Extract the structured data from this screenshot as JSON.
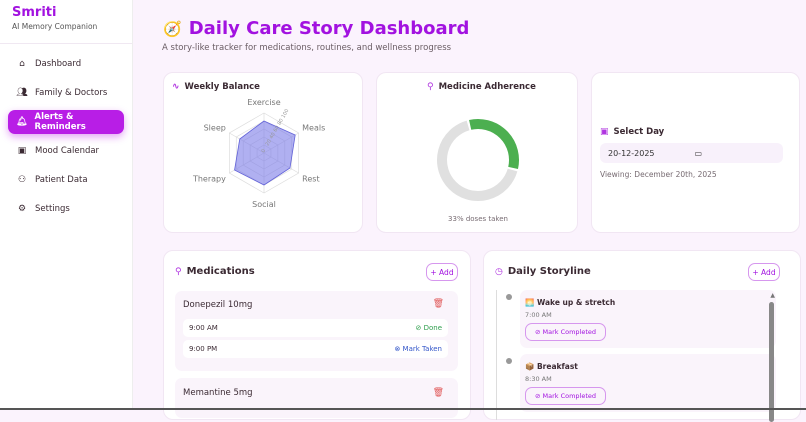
{
  "sidebar": {
    "brand": "Smriti",
    "tagline": "AI Memory Companion",
    "items": [
      {
        "label": "Dashboard",
        "icon": "home-icon"
      },
      {
        "label": "Family & Doctors",
        "icon": "users-icon"
      },
      {
        "label": "Alerts & Reminders",
        "icon": "bell-icon",
        "active": true
      },
      {
        "label": "Mood Calendar",
        "icon": "calendar-icon"
      },
      {
        "label": "Patient Data",
        "icon": "user-icon"
      },
      {
        "label": "Settings",
        "icon": "gear-icon"
      }
    ]
  },
  "header": {
    "emoji": "🧭",
    "title": "Daily Care Story Dashboard",
    "subtitle": "A story-like tracker for medications, routines, and wellness progress"
  },
  "weekly": {
    "title": "Weekly Balance"
  },
  "chart_data": [
    {
      "type": "radar",
      "title": "Weekly Balance",
      "categories": [
        "Exercise",
        "Meals",
        "Rest",
        "Social",
        "Therapy",
        "Sleep"
      ],
      "values": [
        80,
        90,
        75,
        80,
        85,
        70
      ],
      "rlim": [
        0,
        100
      ],
      "ticks": [
        "0",
        "20",
        "40",
        "60",
        "80",
        "100"
      ],
      "color": "#7b7be8"
    },
    {
      "type": "pie",
      "title": "Medicine Adherence",
      "values": [
        33,
        67
      ],
      "colors": [
        "#4caf50",
        "#e0e0e0"
      ],
      "caption": "33% doses taken"
    }
  ],
  "adherence": {
    "title": "Medicine Adherence",
    "caption": "33% doses taken",
    "percent": 33
  },
  "day": {
    "title": "Select Day",
    "value": "20-12-2025",
    "viewing": "Viewing: December 20th, 2025"
  },
  "medications": {
    "title": "Medications",
    "add": "+ Add",
    "items": [
      {
        "name": "Donepezil 10mg",
        "doses": [
          {
            "time": "9:00 AM",
            "status": "Done"
          },
          {
            "time": "9:00 PM",
            "status": "Mark Taken"
          }
        ]
      },
      {
        "name": "Memantine 5mg"
      }
    ]
  },
  "storyline": {
    "title": "Daily Storyline",
    "add": "+ Add",
    "events": [
      {
        "emoji": "🌅",
        "name": "Wake up & stretch",
        "time": "7:00 AM",
        "action": "Mark Completed"
      },
      {
        "emoji": "📦",
        "name": "Breakfast",
        "time": "8:30 AM",
        "action": "Mark Completed"
      }
    ]
  }
}
